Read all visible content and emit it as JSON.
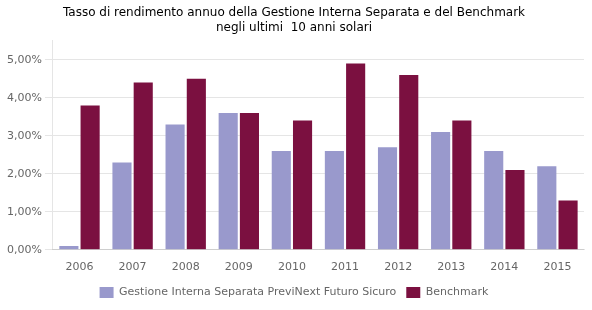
{
  "chart_data": {
    "type": "bar",
    "title": [
      "Tasso di rendimento annuo della Gestione Interna Separata e del Benchmark",
      "negli ultimi  10 anni solari"
    ],
    "categories": [
      "2006",
      "2007",
      "2008",
      "2009",
      "2010",
      "2011",
      "2012",
      "2013",
      "2014",
      "2015"
    ],
    "series": [
      {
        "name": "Gestione Interna Separata PreviNext Futuro Sicuro",
        "color": "#9999CC",
        "values": [
          0.001,
          0.023,
          0.033,
          0.036,
          0.026,
          0.026,
          0.027,
          0.031,
          0.026,
          0.022
        ]
      },
      {
        "name": "Benchmark",
        "color": "#7B1040",
        "values": [
          0.038,
          0.044,
          0.045,
          0.036,
          0.034,
          0.049,
          0.046,
          0.034,
          0.021,
          0.013
        ]
      }
    ],
    "ylim": [
      0,
      0.055
    ],
    "yticks": [
      {
        "value": 0.0,
        "label": "0,00%"
      },
      {
        "value": 0.01,
        "label": "1,00%"
      },
      {
        "value": 0.02,
        "label": "2,00%"
      },
      {
        "value": 0.03,
        "label": "3,00%"
      },
      {
        "value": 0.04,
        "label": "4,00%"
      },
      {
        "value": 0.05,
        "label": "5,00%"
      }
    ],
    "grid": true,
    "legend": "bottom"
  }
}
